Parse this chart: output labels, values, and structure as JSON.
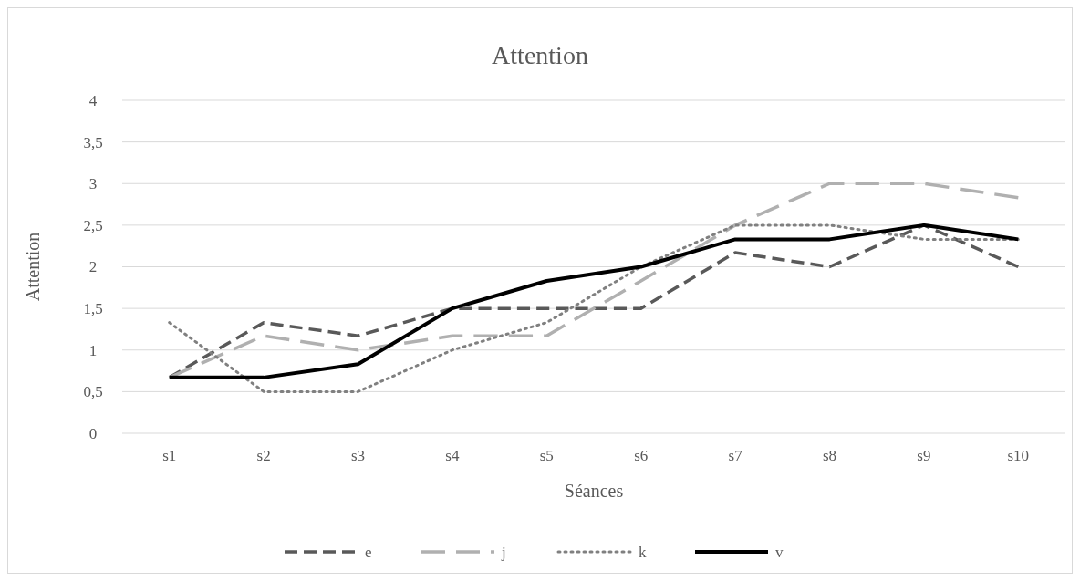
{
  "chart_data": {
    "type": "line",
    "title": "Attention",
    "xlabel": "Séances",
    "ylabel": "Attention",
    "categories": [
      "s1",
      "s2",
      "s3",
      "s4",
      "s5",
      "s6",
      "s7",
      "s8",
      "s9",
      "s10"
    ],
    "series": [
      {
        "name": "e",
        "color": "#595959",
        "line_style": "dashed",
        "values": [
          0.67,
          1.33,
          1.17,
          1.5,
          1.5,
          1.5,
          2.17,
          2,
          2.5,
          2
        ]
      },
      {
        "name": "j",
        "color": "#b0b0b0",
        "line_style": "longdash",
        "values": [
          0.67,
          1.17,
          1,
          1.17,
          1.17,
          1.83,
          2.5,
          3,
          3,
          2.83
        ]
      },
      {
        "name": "k",
        "color": "#808080",
        "line_style": "dotted",
        "values": [
          1.33,
          0.5,
          0.5,
          1,
          1.33,
          2,
          2.5,
          2.5,
          2.33,
          2.33
        ]
      },
      {
        "name": "v",
        "color": "#000000",
        "line_style": "solid",
        "values": [
          0.67,
          0.67,
          0.83,
          1.5,
          1.83,
          2,
          2.33,
          2.33,
          2.5,
          2.33
        ]
      }
    ],
    "ylim": [
      0,
      4
    ],
    "yticks": [
      0,
      {
        "value": 0.5,
        "label": "0,5"
      },
      1,
      {
        "value": 1.5,
        "label": "1,5"
      },
      2,
      {
        "value": 2.5,
        "label": "2,5"
      },
      3,
      {
        "value": 3.5,
        "label": "3,5"
      },
      4
    ],
    "grid": "y",
    "legend": "bottom",
    "marker": "none"
  }
}
